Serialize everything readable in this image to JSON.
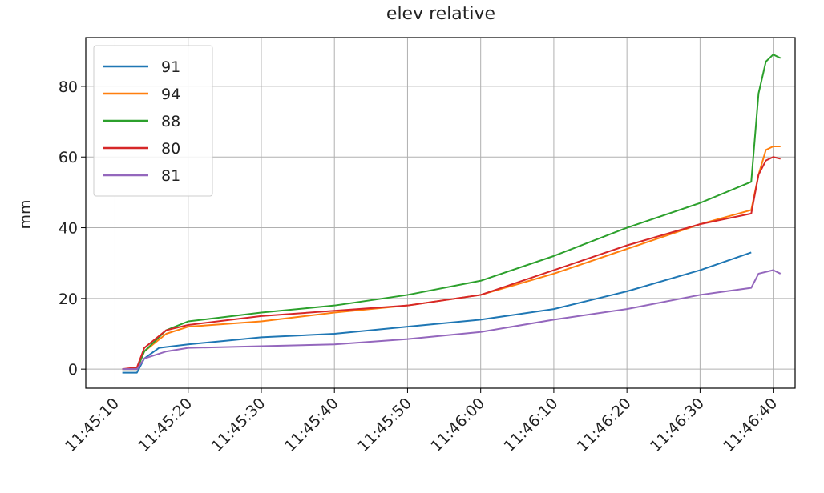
{
  "chart_data": {
    "type": "line",
    "title": "elev relative",
    "y_label": "mm",
    "grid": true,
    "legend": "upper left",
    "xlim": [
      "11:45:06",
      "11:46:43"
    ],
    "xticks": [
      "11:45:10",
      "11:45:20",
      "11:45:30",
      "11:45:40",
      "11:45:50",
      "11:46:00",
      "11:46:10",
      "11:46:20",
      "11:46:30",
      "11:46:40"
    ],
    "ylim": [
      -5.4,
      93.8
    ],
    "yticks": [
      0,
      20,
      40,
      60,
      80
    ],
    "series": [
      {
        "name": "91",
        "color": "#1f77b4",
        "x": [
          "11:45:11",
          "11:45:13",
          "11:45:14",
          "11:45:16",
          "11:45:20",
          "11:45:25",
          "11:45:30",
          "11:45:40",
          "11:45:50",
          "11:46:00",
          "11:46:10",
          "11:46:20",
          "11:46:30",
          "11:46:37"
        ],
        "values": [
          -1,
          -1,
          3,
          6,
          7,
          8,
          9,
          10,
          12,
          14,
          17,
          22,
          28,
          33
        ]
      },
      {
        "name": "94",
        "color": "#ff7f0e",
        "x": [
          "11:45:11",
          "11:45:13",
          "11:45:14",
          "11:45:17",
          "11:45:20",
          "11:45:30",
          "11:45:40",
          "11:45:50",
          "11:46:00",
          "11:46:10",
          "11:46:20",
          "11:46:30",
          "11:46:37",
          "11:46:38",
          "11:46:39",
          "11:46:40",
          "11:46:41"
        ],
        "values": [
          0,
          0,
          5,
          10,
          12,
          13.5,
          16,
          18,
          21,
          27,
          34,
          41,
          45,
          55,
          62,
          63,
          63
        ]
      },
      {
        "name": "88",
        "color": "#2ca02c",
        "x": [
          "11:45:11",
          "11:45:13",
          "11:45:14",
          "11:45:17",
          "11:45:20",
          "11:45:30",
          "11:45:40",
          "11:45:50",
          "11:46:00",
          "11:46:10",
          "11:46:20",
          "11:46:30",
          "11:46:37",
          "11:46:38",
          "11:46:39",
          "11:46:40",
          "11:46:41"
        ],
        "values": [
          0,
          0,
          5,
          11,
          13.5,
          16,
          18,
          21,
          25,
          32,
          40,
          47,
          53,
          78,
          87,
          89,
          88
        ]
      },
      {
        "name": "80",
        "color": "#d62728",
        "x": [
          "11:45:11",
          "11:45:13",
          "11:45:14",
          "11:45:17",
          "11:45:20",
          "11:45:30",
          "11:45:40",
          "11:45:50",
          "11:46:00",
          "11:46:10",
          "11:46:20",
          "11:46:30",
          "11:46:37",
          "11:46:38",
          "11:46:39",
          "11:46:40",
          "11:46:41"
        ],
        "values": [
          0,
          0.5,
          6,
          11,
          12.5,
          15,
          16.5,
          18,
          21,
          28,
          35,
          41,
          44,
          55,
          59,
          60,
          59.5
        ]
      },
      {
        "name": "81",
        "color": "#9467bd",
        "x": [
          "11:45:11",
          "11:45:13",
          "11:45:14",
          "11:45:17",
          "11:45:20",
          "11:45:30",
          "11:45:40",
          "11:45:50",
          "11:46:00",
          "11:46:10",
          "11:46:20",
          "11:46:30",
          "11:46:37",
          "11:46:38",
          "11:46:40",
          "11:46:41"
        ],
        "values": [
          0,
          0,
          3,
          5,
          6,
          6.5,
          7,
          8.5,
          10.5,
          14,
          17,
          21,
          23,
          27,
          28,
          27
        ]
      }
    ]
  }
}
